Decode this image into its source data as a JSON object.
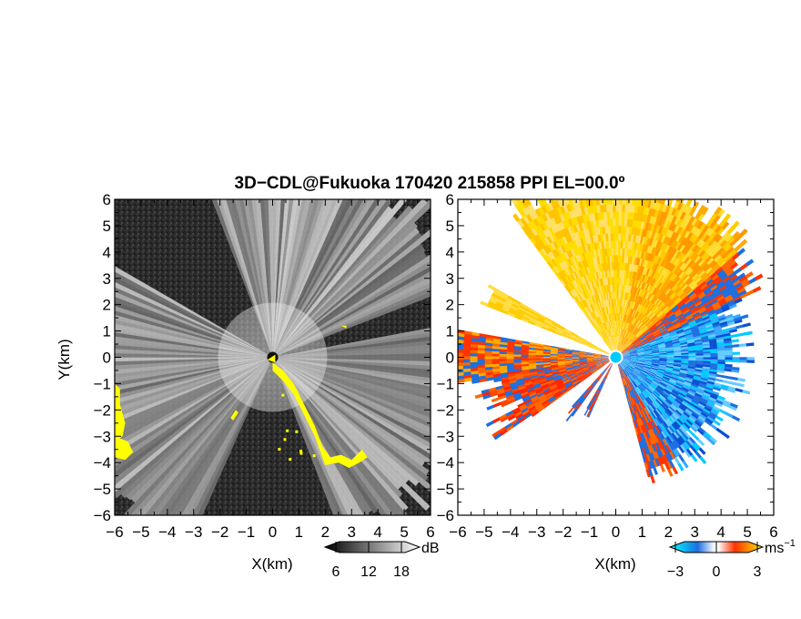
{
  "title": "3D−CDL@Fukuoka 170420 215858 PPI EL=00.0º",
  "chart_data": [
    {
      "type": "heatmap",
      "panel": "left",
      "quantity": "dB",
      "xlabel": "X(km)",
      "ylabel": "Y(km)",
      "xlim": [
        -6,
        6
      ],
      "ylim": [
        -6,
        6
      ],
      "xticks": [
        "−6",
        "−5",
        "−4",
        "−3",
        "−2",
        "−1",
        "0",
        "1",
        "2",
        "3",
        "4",
        "5",
        "6"
      ],
      "yticks": [
        "6",
        "5",
        "4",
        "3",
        "2",
        "1",
        "0",
        "−1",
        "−2",
        "−3",
        "−4",
        "−5",
        "−6"
      ],
      "colorbar": {
        "label": "dB",
        "ticks": [
          "6",
          "12",
          "18"
        ],
        "values": [
          6,
          12,
          18
        ],
        "range": [
          0,
          24
        ]
      },
      "highlight_color": "#ffff00",
      "background_color": "#262626"
    },
    {
      "type": "heatmap",
      "panel": "right",
      "quantity": "Doppler velocity",
      "xlabel": "X(km)",
      "xlim": [
        -6,
        6
      ],
      "ylim": [
        -6,
        6
      ],
      "xticks": [
        "−6",
        "−5",
        "−4",
        "−3",
        "−2",
        "−1",
        "0",
        "1",
        "2",
        "3",
        "4",
        "5",
        "6"
      ],
      "yticks": [
        "6",
        "5",
        "4",
        "3",
        "2",
        "1",
        "0",
        "−1",
        "−2",
        "−3",
        "−4",
        "−5",
        "−6"
      ],
      "colorbar": {
        "label": "ms",
        "label_sup": "−1",
        "ticks": [
          "−3",
          "0",
          "3"
        ],
        "values": [
          -3,
          0,
          3
        ],
        "range": [
          -5,
          5
        ]
      },
      "colors": {
        "negative": "#1e6fe0",
        "positive": "#ff8c00",
        "near_zero": "#ffffff"
      }
    }
  ]
}
